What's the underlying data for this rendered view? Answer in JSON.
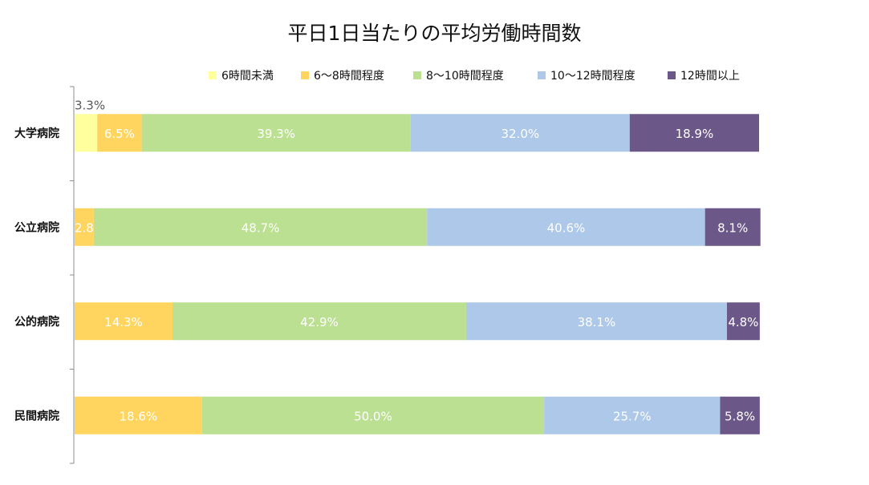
{
  "chart_data": {
    "type": "bar",
    "orientation": "horizontal",
    "stacked": "percent",
    "title": "平日1日当たりの平均労働時間数",
    "xlabel": "",
    "ylabel": "",
    "legend_position": "top",
    "grid": false,
    "categories": [
      "大学病院",
      "公立病院",
      "公的病院",
      "民間病院"
    ],
    "series": [
      {
        "name": "6時間未満",
        "color": "#FFFF9E",
        "values": [
          3.3,
          0,
          0,
          0
        ],
        "labels": [
          "3.3%",
          "",
          "",
          ""
        ]
      },
      {
        "name": "6～8時間程度",
        "color": "#FFD55F",
        "values": [
          6.5,
          2.8,
          14.3,
          18.6
        ],
        "labels": [
          "6.5%",
          "2.8%",
          "14.3%",
          "18.6%"
        ]
      },
      {
        "name": "8～10時間程度",
        "color": "#BBE092",
        "values": [
          39.3,
          48.7,
          42.9,
          50.0
        ],
        "labels": [
          "39.3%",
          "48.7%",
          "42.9%",
          "50.0%"
        ]
      },
      {
        "name": "10～12時間程度",
        "color": "#AEC8EA",
        "values": [
          32.0,
          40.6,
          38.1,
          25.7
        ],
        "labels": [
          "32.0%",
          "40.6%",
          "38.1%",
          "25.7%"
        ]
      },
      {
        "name": "12時間以上",
        "color": "#6B5888",
        "values": [
          18.9,
          8.1,
          4.8,
          5.8
        ],
        "labels": [
          "18.9%",
          "8.1%",
          "4.8%",
          "5.8%"
        ]
      }
    ],
    "xlim": [
      0,
      100
    ]
  }
}
